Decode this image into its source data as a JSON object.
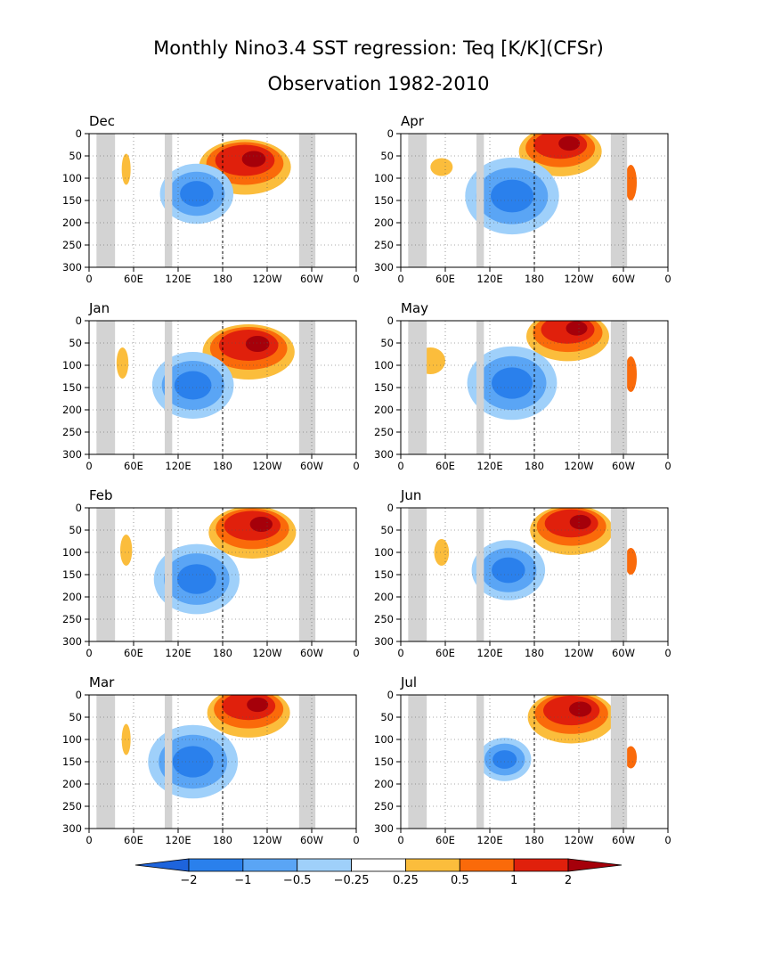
{
  "figure": {
    "title_line1": "Monthly Nino3.4 SST regression: Teq [K/K](CFSr)",
    "title_line2": "Observation 1982-2010"
  },
  "chart_data": {
    "type": "heatmap",
    "description_units": "depth (m) vs longitude",
    "x_ticks": [
      "0",
      "60E",
      "120E",
      "180",
      "120W",
      "60W",
      "0"
    ],
    "y_ticks": [
      "0",
      "50",
      "100",
      "150",
      "200",
      "250",
      "300"
    ],
    "ylim": [
      300,
      0
    ],
    "xlim_deg_east": [
      0,
      360
    ],
    "grid": true,
    "panels": [
      {
        "label": "Dec",
        "row": 0,
        "col": 0
      },
      {
        "label": "Apr",
        "row": 0,
        "col": 1
      },
      {
        "label": "Jan",
        "row": 1,
        "col": 0
      },
      {
        "label": "May",
        "row": 1,
        "col": 1
      },
      {
        "label": "Feb",
        "row": 2,
        "col": 0
      },
      {
        "label": "Jun",
        "row": 2,
        "col": 1
      },
      {
        "label": "Mar",
        "row": 3,
        "col": 0
      },
      {
        "label": "Jul",
        "row": 3,
        "col": 1
      }
    ],
    "land_masks_lon_deg_east": [
      [
        10,
        35
      ],
      [
        102,
        112
      ],
      [
        283,
        305
      ]
    ],
    "colorbar": {
      "levels": [
        "-2",
        "-1",
        "-0.5",
        "-0.25",
        "0.25",
        "0.5",
        "1",
        "2"
      ],
      "colors": [
        "#1e64dc",
        "#2a80ec",
        "#5aa5f5",
        "#9fd0fa",
        "#ffffff",
        "#fbbd3c",
        "#fa6a0a",
        "#e0200c",
        "#a5000a"
      ]
    }
  }
}
